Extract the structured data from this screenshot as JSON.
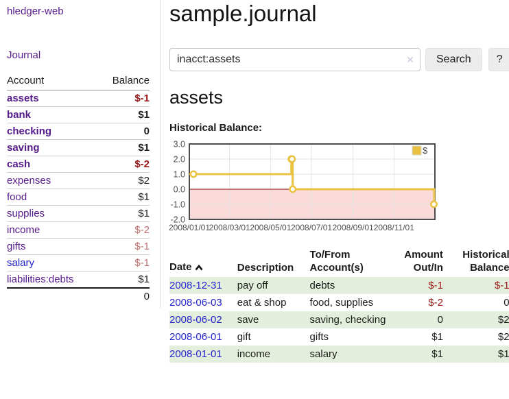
{
  "sidebar": {
    "brand": "hledger-web",
    "nav": {
      "journal": "Journal"
    },
    "accounts": {
      "headers": {
        "account": "Account",
        "balance": "Balance"
      },
      "rows": [
        {
          "name": "assets",
          "balance": "$-1",
          "level": 1,
          "matched": true
        },
        {
          "name": "bank",
          "balance": "$1",
          "level": 2,
          "matched": true
        },
        {
          "name": "checking",
          "balance": "0",
          "level": 3,
          "matched": true
        },
        {
          "name": "saving",
          "balance": "$1",
          "level": 3,
          "matched": true
        },
        {
          "name": "cash",
          "balance": "$-2",
          "level": 2,
          "matched": true
        },
        {
          "name": "expenses",
          "balance": "$2",
          "level": 1,
          "matched": false
        },
        {
          "name": "food",
          "balance": "$1",
          "level": 2,
          "matched": false
        },
        {
          "name": "supplies",
          "balance": "$1",
          "level": 2,
          "matched": false
        },
        {
          "name": "income",
          "balance": "$-2",
          "level": 1,
          "matched": false
        },
        {
          "name": "gifts",
          "balance": "$-1",
          "level": 2,
          "matched": false
        },
        {
          "name": "salary",
          "balance": "$-1",
          "level": 2,
          "matched": false
        },
        {
          "name": "liabilities:debts",
          "balance": "$1",
          "level": 1,
          "matched": false
        }
      ],
      "total": "0"
    }
  },
  "header": {
    "title": "sample.journal"
  },
  "search": {
    "query": "inacct:assets",
    "search_label": "Search",
    "help_label": "?"
  },
  "icons": {
    "clear": "✕",
    "sort": "chevron-up"
  },
  "account_page": {
    "heading": "assets",
    "chart_label": "Historical Balance:"
  },
  "chart_data": {
    "type": "line",
    "style": "steps",
    "title": "Historical Balance:",
    "xlim": [
      "2008-01-01",
      "2009-01-01"
    ],
    "ylim": [
      -2.0,
      3.0
    ],
    "grid": true,
    "legend_position": "top-right",
    "series": [
      {
        "name": "$",
        "color": "#e8c240",
        "points": [
          [
            "2008-01-01",
            1.0
          ],
          [
            "2008-06-01",
            2.0
          ],
          [
            "2008-06-02",
            2.0
          ],
          [
            "2008-06-03",
            0.0
          ],
          [
            "2008-12-31",
            -1.0
          ]
        ]
      }
    ],
    "x_ticks": [
      {
        "date": "2008-01-01",
        "label": "2008/01/01"
      },
      {
        "date": "2008-03-01",
        "label": "2008/03/01"
      },
      {
        "date": "2008-05-01",
        "label": "2008/05/01"
      },
      {
        "date": "2008-07-01",
        "label": "2008/07/01"
      },
      {
        "date": "2008-09-01",
        "label": "2008/09/01"
      },
      {
        "date": "2008-11-01",
        "label": "2008/11/01"
      }
    ],
    "y_ticks": [
      {
        "value": 3.0,
        "label": "3.0"
      },
      {
        "value": 2.0,
        "label": "2.0"
      },
      {
        "value": 1.0,
        "label": "1.0"
      },
      {
        "value": 0.0,
        "label": "0.0"
      },
      {
        "value": -1.0,
        "label": "-1.0"
      },
      {
        "value": -2.0,
        "label": "-2.0"
      }
    ],
    "zero_line_color": "#8b0000",
    "negative_region_color": "#fbdada"
  },
  "register": {
    "headers": {
      "date": "Date",
      "description": "Description",
      "accounts": "To/From Account(s)",
      "amount": "Amount Out/In",
      "balance": "Historical Balance"
    },
    "rows": [
      {
        "date": "2008-12-31",
        "description": "pay off",
        "accounts": "debts",
        "amount": "$-1",
        "balance": "$-1"
      },
      {
        "date": "2008-06-03",
        "description": "eat & shop",
        "accounts": "food, supplies",
        "amount": "$-2",
        "balance": "0"
      },
      {
        "date": "2008-06-02",
        "description": "save",
        "accounts": "saving, checking",
        "amount": "0",
        "balance": "$2"
      },
      {
        "date": "2008-06-01",
        "description": "gift",
        "accounts": "gifts",
        "amount": "$1",
        "balance": "$2"
      },
      {
        "date": "2008-01-01",
        "description": "income",
        "accounts": "salary",
        "amount": "$1",
        "balance": "$1"
      }
    ]
  },
  "colors": {
    "link_visited_purple": "#551a8b",
    "link_blue": "#2424cc",
    "negative_strong": "#9b1515",
    "negative_muted": "#bf6e6c",
    "row_stripe_green": "#e3efdc",
    "chart_line_gold": "#e8c240",
    "chart_negative_pink": "#fbdada",
    "chart_zero_line": "#8b0000"
  }
}
